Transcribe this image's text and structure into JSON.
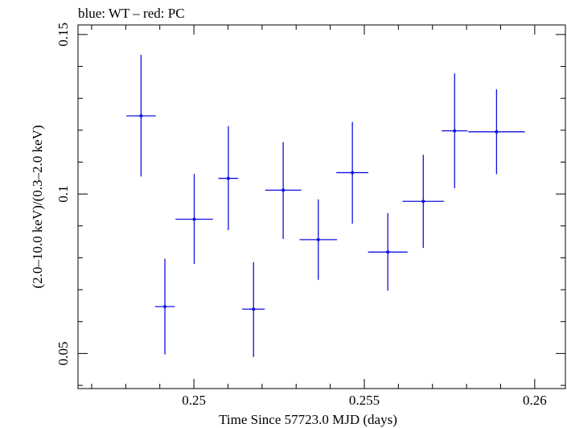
{
  "chart_data": {
    "type": "scatter",
    "title": "blue: WT – red: PC",
    "xlabel": "Time Since 57723.0 MJD (days)",
    "ylabel": "(2.0–10.0 keV)/(0.3–2.0 keV)",
    "xlim": [
      0.2466,
      0.2609
    ],
    "ylim": [
      0.039,
      0.153
    ],
    "xticks": [
      0.25,
      0.255,
      0.26
    ],
    "xtick_labels": [
      "0.25",
      "0.255",
      "0.26"
    ],
    "yticks": [
      0.05,
      0.1,
      0.15
    ],
    "ytick_labels": [
      "0.05",
      "0.1",
      "0.15"
    ],
    "grid": false,
    "colors": {
      "series": "#1010e0",
      "axes": "#000000"
    },
    "series": [
      {
        "points": [
          {
            "x": 0.24845,
            "xerr": 0.00043,
            "y": 0.1245,
            "ylo": 0.1055,
            "yhi": 0.1436
          },
          {
            "x": 0.24915,
            "xerr": 0.00029,
            "y": 0.0647,
            "ylo": 0.0497,
            "yhi": 0.0797
          },
          {
            "x": 0.25001,
            "xerr": 0.00055,
            "y": 0.0921,
            "ylo": 0.0781,
            "yhi": 0.1063
          },
          {
            "x": 0.25101,
            "xerr": 0.00029,
            "y": 0.1049,
            "ylo": 0.0887,
            "yhi": 0.1213
          },
          {
            "x": 0.25175,
            "xerr": 0.00033,
            "y": 0.0639,
            "ylo": 0.0489,
            "yhi": 0.0786
          },
          {
            "x": 0.25262,
            "xerr": 0.00053,
            "y": 0.1012,
            "ylo": 0.0859,
            "yhi": 0.1163
          },
          {
            "x": 0.25365,
            "xerr": 0.00055,
            "y": 0.0857,
            "ylo": 0.0731,
            "yhi": 0.0983
          },
          {
            "x": 0.25465,
            "xerr": 0.00047,
            "y": 0.1067,
            "ylo": 0.0907,
            "yhi": 0.1226
          },
          {
            "x": 0.25569,
            "xerr": 0.00058,
            "y": 0.0818,
            "ylo": 0.0697,
            "yhi": 0.094
          },
          {
            "x": 0.25673,
            "xerr": 0.00061,
            "y": 0.0977,
            "ylo": 0.0831,
            "yhi": 0.1123
          },
          {
            "x": 0.25765,
            "xerr": 0.00038,
            "y": 0.1198,
            "ylo": 0.1018,
            "yhi": 0.1378
          },
          {
            "x": 0.25888,
            "xerr": 0.00083,
            "y": 0.1195,
            "ylo": 0.1062,
            "yhi": 0.1328
          }
        ]
      }
    ]
  }
}
